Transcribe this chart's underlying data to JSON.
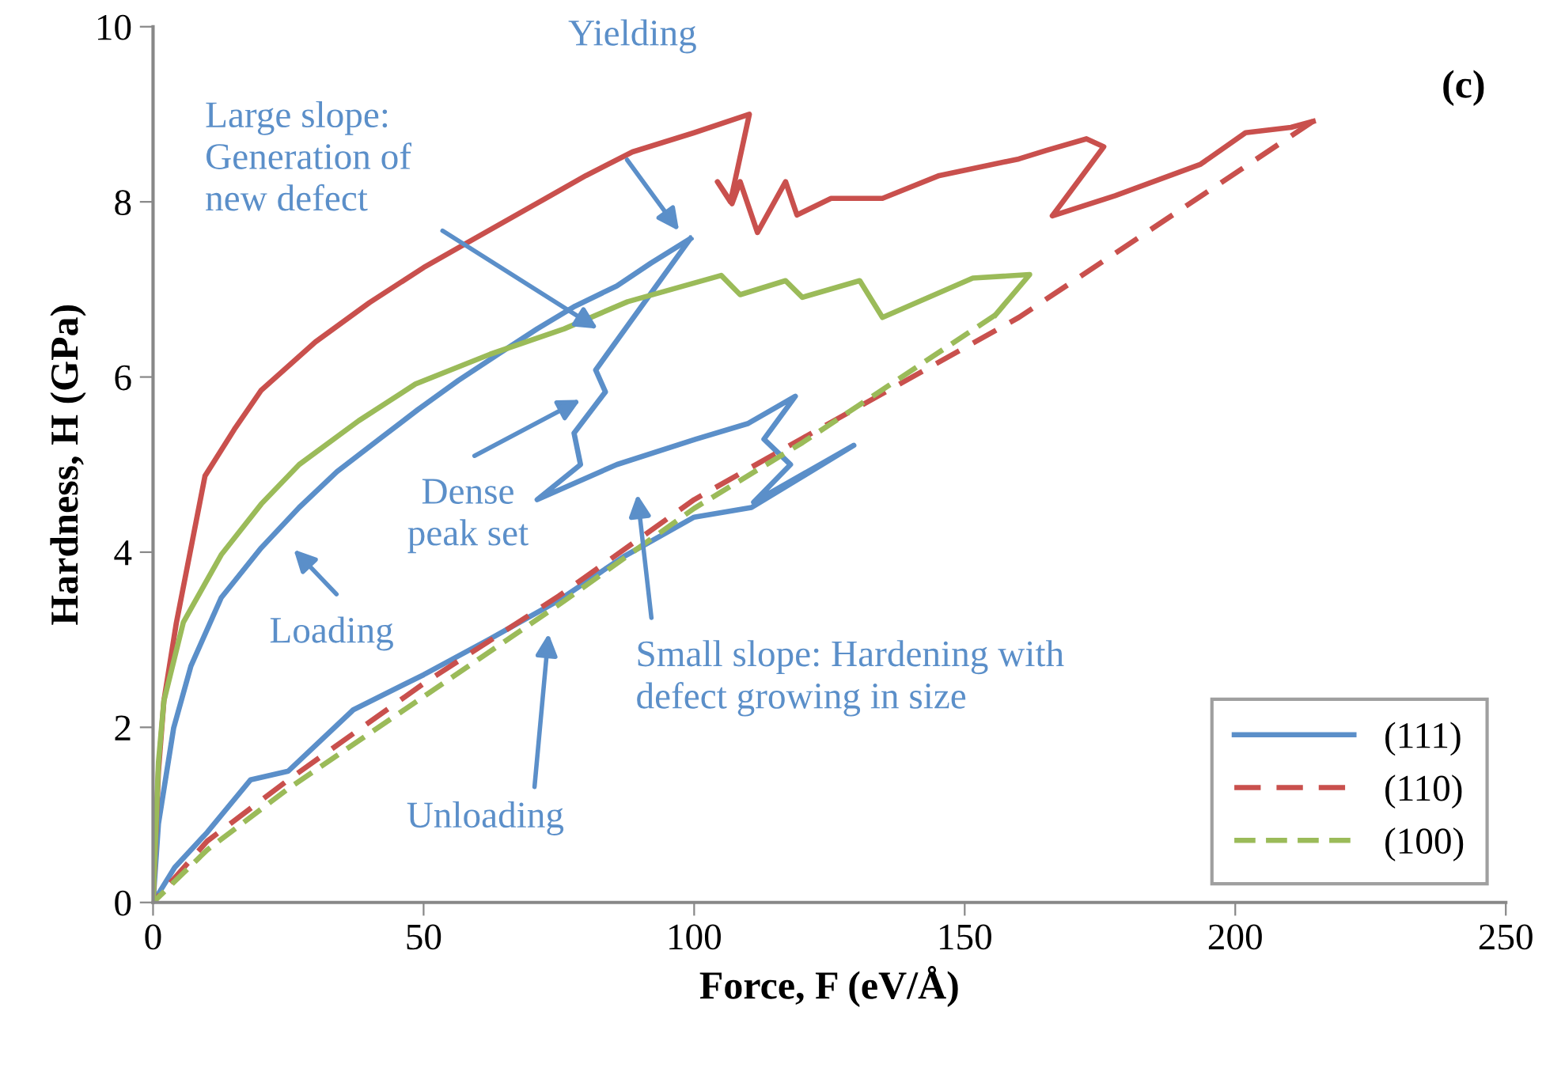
{
  "chart_data": {
    "type": "line",
    "xlabel": "Force, F (eV/Å)",
    "ylabel": "Hardness, H (GPa)",
    "xlim": [
      0,
      250
    ],
    "xticks": [
      0,
      50,
      100,
      150,
      200,
      250
    ],
    "ylim": [
      0,
      10
    ],
    "yticks": [
      0,
      2,
      4,
      6,
      8,
      10
    ],
    "grid": false,
    "legend": "bottom right",
    "marker": "none",
    "series": [
      {
        "name": "(111)",
        "color": "#5b8fc9",
        "line_style": "solid",
        "x": [
          0,
          1,
          3.8,
          7,
          12.6,
          20,
          27,
          34,
          41.8,
          49,
          56.4,
          64,
          71,
          78,
          85.7,
          92,
          99.3
        ],
        "values": [
          0,
          0.9,
          1.99,
          2.7,
          3.48,
          4.05,
          4.51,
          4.92,
          5.29,
          5.63,
          5.96,
          6.27,
          6.55,
          6.81,
          7.04,
          7.3,
          7.58
        ]
      },
      {
        "color": "#5b8fc9",
        "line_style": "solid",
        "x": [
          99.3,
          81.8,
          83.6,
          77.8,
          79,
          71,
          85.7,
          100.3,
          110,
          118.7,
          112.9,
          117.8,
          111,
          129.5,
          110.6,
          100,
          87,
          75,
          62,
          50,
          37,
          25,
          18,
          10,
          4,
          0
        ],
        "values": [
          7.58,
          6.08,
          5.83,
          5.36,
          5.0,
          4.6,
          5.0,
          5.29,
          5.47,
          5.78,
          5.29,
          5.0,
          4.57,
          5.22,
          4.51,
          4.4,
          3.95,
          3.45,
          3.0,
          2.6,
          2.2,
          1.5,
          1.4,
          0.8,
          0.4,
          0
        ]
      },
      {
        "color": "#c9504d",
        "line_style": "solid",
        "x": [
          0,
          1,
          2,
          4.3,
          9.6,
          15,
          20,
          30,
          40,
          50,
          59.4,
          70,
          80,
          88.6,
          100,
          110.2,
          106.7,
          104.3,
          107,
          108.5,
          111.7,
          116.9,
          119,
          125.3,
          134.8,
          145.3,
          160,
          165.2,
          172.5,
          175.7,
          166.2,
          177.8,
          193.6,
          201.9,
          210.3,
          214.4
        ],
        "values": [
          0,
          1.5,
          2.3,
          3.19,
          4.87,
          5.4,
          5.85,
          6.4,
          6.85,
          7.25,
          7.58,
          7.95,
          8.3,
          8.57,
          8.79,
          9.0,
          8.0,
          8.23,
          7.98,
          8.23,
          7.65,
          8.23,
          7.85,
          8.04,
          8.04,
          8.3,
          8.49,
          8.59,
          8.72,
          8.63,
          7.84,
          8.07,
          8.43,
          8.79,
          8.85,
          8.92
        ]
      },
      {
        "name": "(110)",
        "color": "#c9504d",
        "line_style": "dashed",
        "x": [
          214.4,
          160,
          120,
          100,
          75,
          50,
          25,
          10,
          0
        ],
        "values": [
          8.92,
          6.68,
          5.3,
          4.6,
          3.5,
          2.5,
          1.4,
          0.7,
          0
        ]
      },
      {
        "color": "#9bbb59",
        "line_style": "solid",
        "x": [
          0,
          1,
          2,
          5.6,
          12.6,
          20,
          27,
          38,
          48.5,
          62.3,
          76,
          87.7,
          105,
          108.5,
          116.9,
          120,
          130.6,
          134.8,
          151.5,
          162,
          155.7
        ],
        "values": [
          0,
          1.6,
          2.3,
          3.2,
          3.97,
          4.55,
          5.0,
          5.5,
          5.92,
          6.26,
          6.55,
          6.86,
          7.16,
          6.94,
          7.1,
          6.91,
          7.1,
          6.68,
          7.13,
          7.17,
          6.71
        ]
      },
      {
        "name": "(100)",
        "color": "#9bbb59",
        "line_style": "dashed",
        "x": [
          155.7,
          120,
          100,
          75,
          50,
          25,
          10,
          0
        ],
        "values": [
          6.71,
          5.25,
          4.5,
          3.4,
          2.35,
          1.3,
          0.6,
          0
        ]
      }
    ],
    "annotations": [
      "Yielding",
      "Large slope:\nGeneration of\nnew defect",
      "Dense\npeak set",
      "Loading",
      "Small slope: Hardening with\ndefect growing in size",
      "Unloading",
      "(c)"
    ]
  }
}
